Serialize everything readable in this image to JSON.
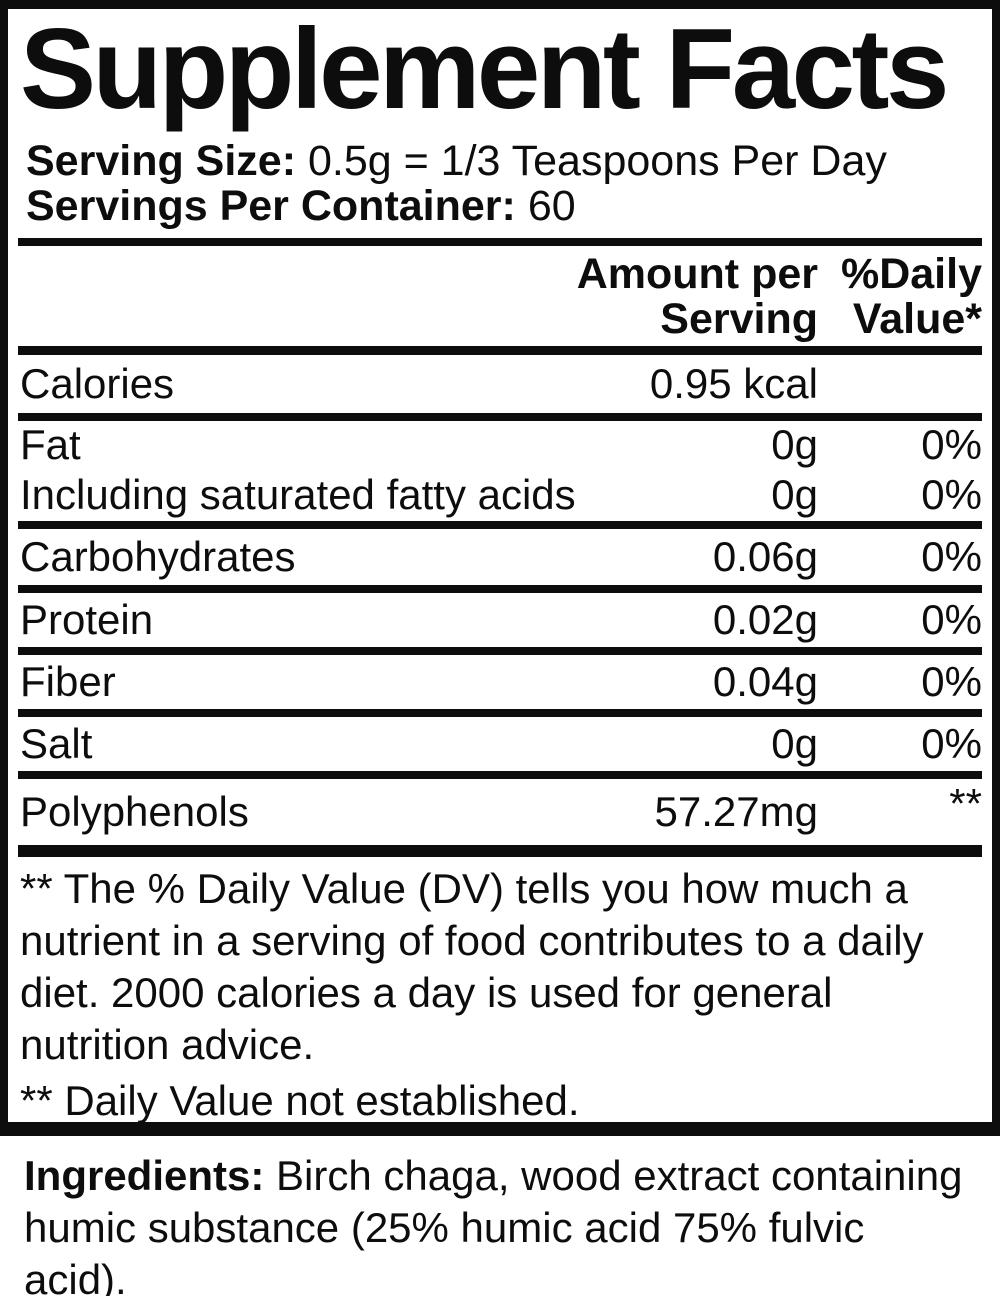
{
  "title": "Supplement Facts",
  "serving": {
    "size_label": "Serving Size:",
    "size_value": "0.5g = 1/3 Teaspoons Per Day",
    "per_container_label": "Servings Per Container:",
    "per_container_value": "60"
  },
  "table": {
    "header": {
      "amount_line1": "Amount per",
      "amount_line2": "Serving",
      "dv_line1": "%Daily",
      "dv_line2": "Value*"
    },
    "rows": [
      {
        "name": "Calories",
        "amount": "0.95 kcal",
        "dv": ""
      },
      {
        "name": "Fat",
        "amount": "0g",
        "dv": "0%"
      },
      {
        "name": "Including saturated fatty acids",
        "amount": "0g",
        "dv": "0%"
      },
      {
        "name": "Carbohydrates",
        "amount": "0.06g",
        "dv": "0%"
      },
      {
        "name": "Protein",
        "amount": "0.02g",
        "dv": "0%"
      },
      {
        "name": "Fiber",
        "amount": "0.04g",
        "dv": "0%"
      },
      {
        "name": "Salt",
        "amount": "0g",
        "dv": "0%"
      },
      {
        "name": "Polyphenols",
        "amount": "57.27mg",
        "dv": "**"
      }
    ]
  },
  "footnotes": {
    "dv_note": "** The % Daily Value (DV) tells you how much a nutrient in a serving of food contributes to a daily diet. 2000 calories a day is used for general nutrition advice.",
    "not_established": "** Daily Value not established."
  },
  "ingredients": {
    "label": "Ingredients:",
    "text": "Birch chaga, wood extract containing humic substance (25% humic acid 75% fulvic acid)."
  },
  "colors": {
    "text": "#0d0d0d",
    "background": "#ffffff"
  }
}
